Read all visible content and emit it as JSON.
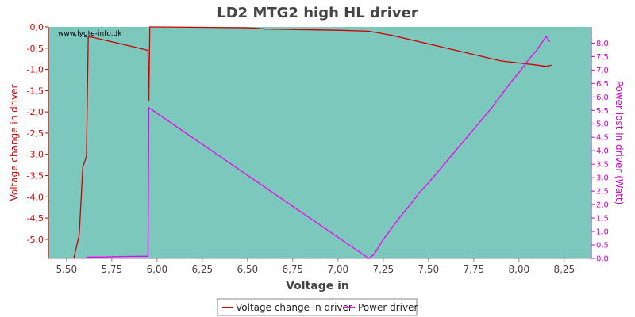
{
  "chart_data": {
    "type": "line",
    "title": "LD2 MTG2 high HL driver",
    "xlabel": "Voltage in",
    "ylabel_left": "Voltage change in driver",
    "ylabel_right": "Power lost in driver (Watt)",
    "watermark": "www.lygte-info.dk",
    "xlim": [
      5.4,
      8.4
    ],
    "ylim_left": [
      -5.45,
      0.0
    ],
    "ylim_right": [
      0.0,
      8.6
    ],
    "x_ticks": [
      5.5,
      5.75,
      6.0,
      6.25,
      6.5,
      6.75,
      7.0,
      7.25,
      7.5,
      7.75,
      8.0,
      8.25
    ],
    "x_tick_labels": [
      "5,50",
      "5,75",
      "6,00",
      "6,25",
      "6,50",
      "6,75",
      "7,00",
      "7,25",
      "7,50",
      "7,75",
      "8,00",
      "8,25"
    ],
    "y_left_ticks": [
      0.0,
      -0.5,
      -1.0,
      -1.5,
      -2.0,
      -2.5,
      -3.0,
      -3.5,
      -4.0,
      -4.5,
      -5.0
    ],
    "y_left_tick_labels": [
      "0,0",
      "-0,5",
      "-1,0",
      "-1,5",
      "-2,0",
      "-2,5",
      "-3,0",
      "-3,5",
      "-4,0",
      "-4,5",
      "-5,0"
    ],
    "y_right_ticks": [
      0.0,
      0.5,
      1.0,
      1.5,
      2.0,
      2.5,
      3.0,
      3.5,
      4.0,
      4.5,
      5.0,
      5.5,
      6.0,
      6.5,
      7.0,
      7.5,
      8.0
    ],
    "y_right_tick_labels": [
      "0,0",
      "0,5",
      "1,0",
      "1,5",
      "2,0",
      "2,5",
      "3,0",
      "3,5",
      "4,0",
      "4,5",
      "5,0",
      "5,5",
      "6,0",
      "6,5",
      "7,0",
      "7,5",
      "8,0"
    ],
    "grid": false,
    "legend_position": "bottom-center",
    "colors": {
      "plot_bg": "#7dc8bd",
      "voltage": "#cc0000",
      "power": "#ee00ee",
      "left_axis": "#cc0000",
      "right_axis": "#cc00cc",
      "x_axis": "#888888"
    },
    "series": [
      {
        "name": "Voltage change in driver",
        "axis": "left",
        "x": [
          5.54,
          5.57,
          5.59,
          5.61,
          5.62,
          5.65,
          5.7,
          5.8,
          5.9,
          5.95,
          5.955,
          5.96,
          5.965,
          5.98,
          6.0,
          6.25,
          6.5,
          6.55,
          6.6,
          6.75,
          6.9,
          7.02,
          7.17,
          7.3,
          7.4,
          7.5,
          7.6,
          7.7,
          7.8,
          7.9,
          8.0,
          8.1,
          8.15,
          8.18
        ],
        "y": [
          -5.45,
          -4.9,
          -3.3,
          -3.05,
          -0.23,
          -0.25,
          -0.3,
          -0.4,
          -0.5,
          -0.55,
          -1.75,
          -0.0,
          -0.0,
          -0.0,
          -0.0,
          -0.01,
          -0.02,
          -0.03,
          -0.05,
          -0.06,
          -0.07,
          -0.08,
          -0.1,
          -0.2,
          -0.3,
          -0.4,
          -0.5,
          -0.6,
          -0.7,
          -0.8,
          -0.85,
          -0.9,
          -0.93,
          -0.9
        ]
      },
      {
        "name": "Power driver",
        "axis": "right",
        "x": [
          5.6,
          5.62,
          5.7,
          5.8,
          5.9,
          5.95,
          5.955,
          7.17,
          7.2,
          7.25,
          7.3,
          7.35,
          7.4,
          7.45,
          7.5,
          7.55,
          7.6,
          7.65,
          7.7,
          7.75,
          7.8,
          7.85,
          7.9,
          7.95,
          8.0,
          8.05,
          8.1,
          8.15,
          8.17
        ],
        "y": [
          0.0,
          0.05,
          0.05,
          0.07,
          0.08,
          0.08,
          5.6,
          0.0,
          0.15,
          0.7,
          1.15,
          1.6,
          2.0,
          2.45,
          2.8,
          3.2,
          3.6,
          4.0,
          4.4,
          4.8,
          5.2,
          5.6,
          6.05,
          6.5,
          6.9,
          7.35,
          7.75,
          8.25,
          8.05
        ]
      }
    ]
  }
}
